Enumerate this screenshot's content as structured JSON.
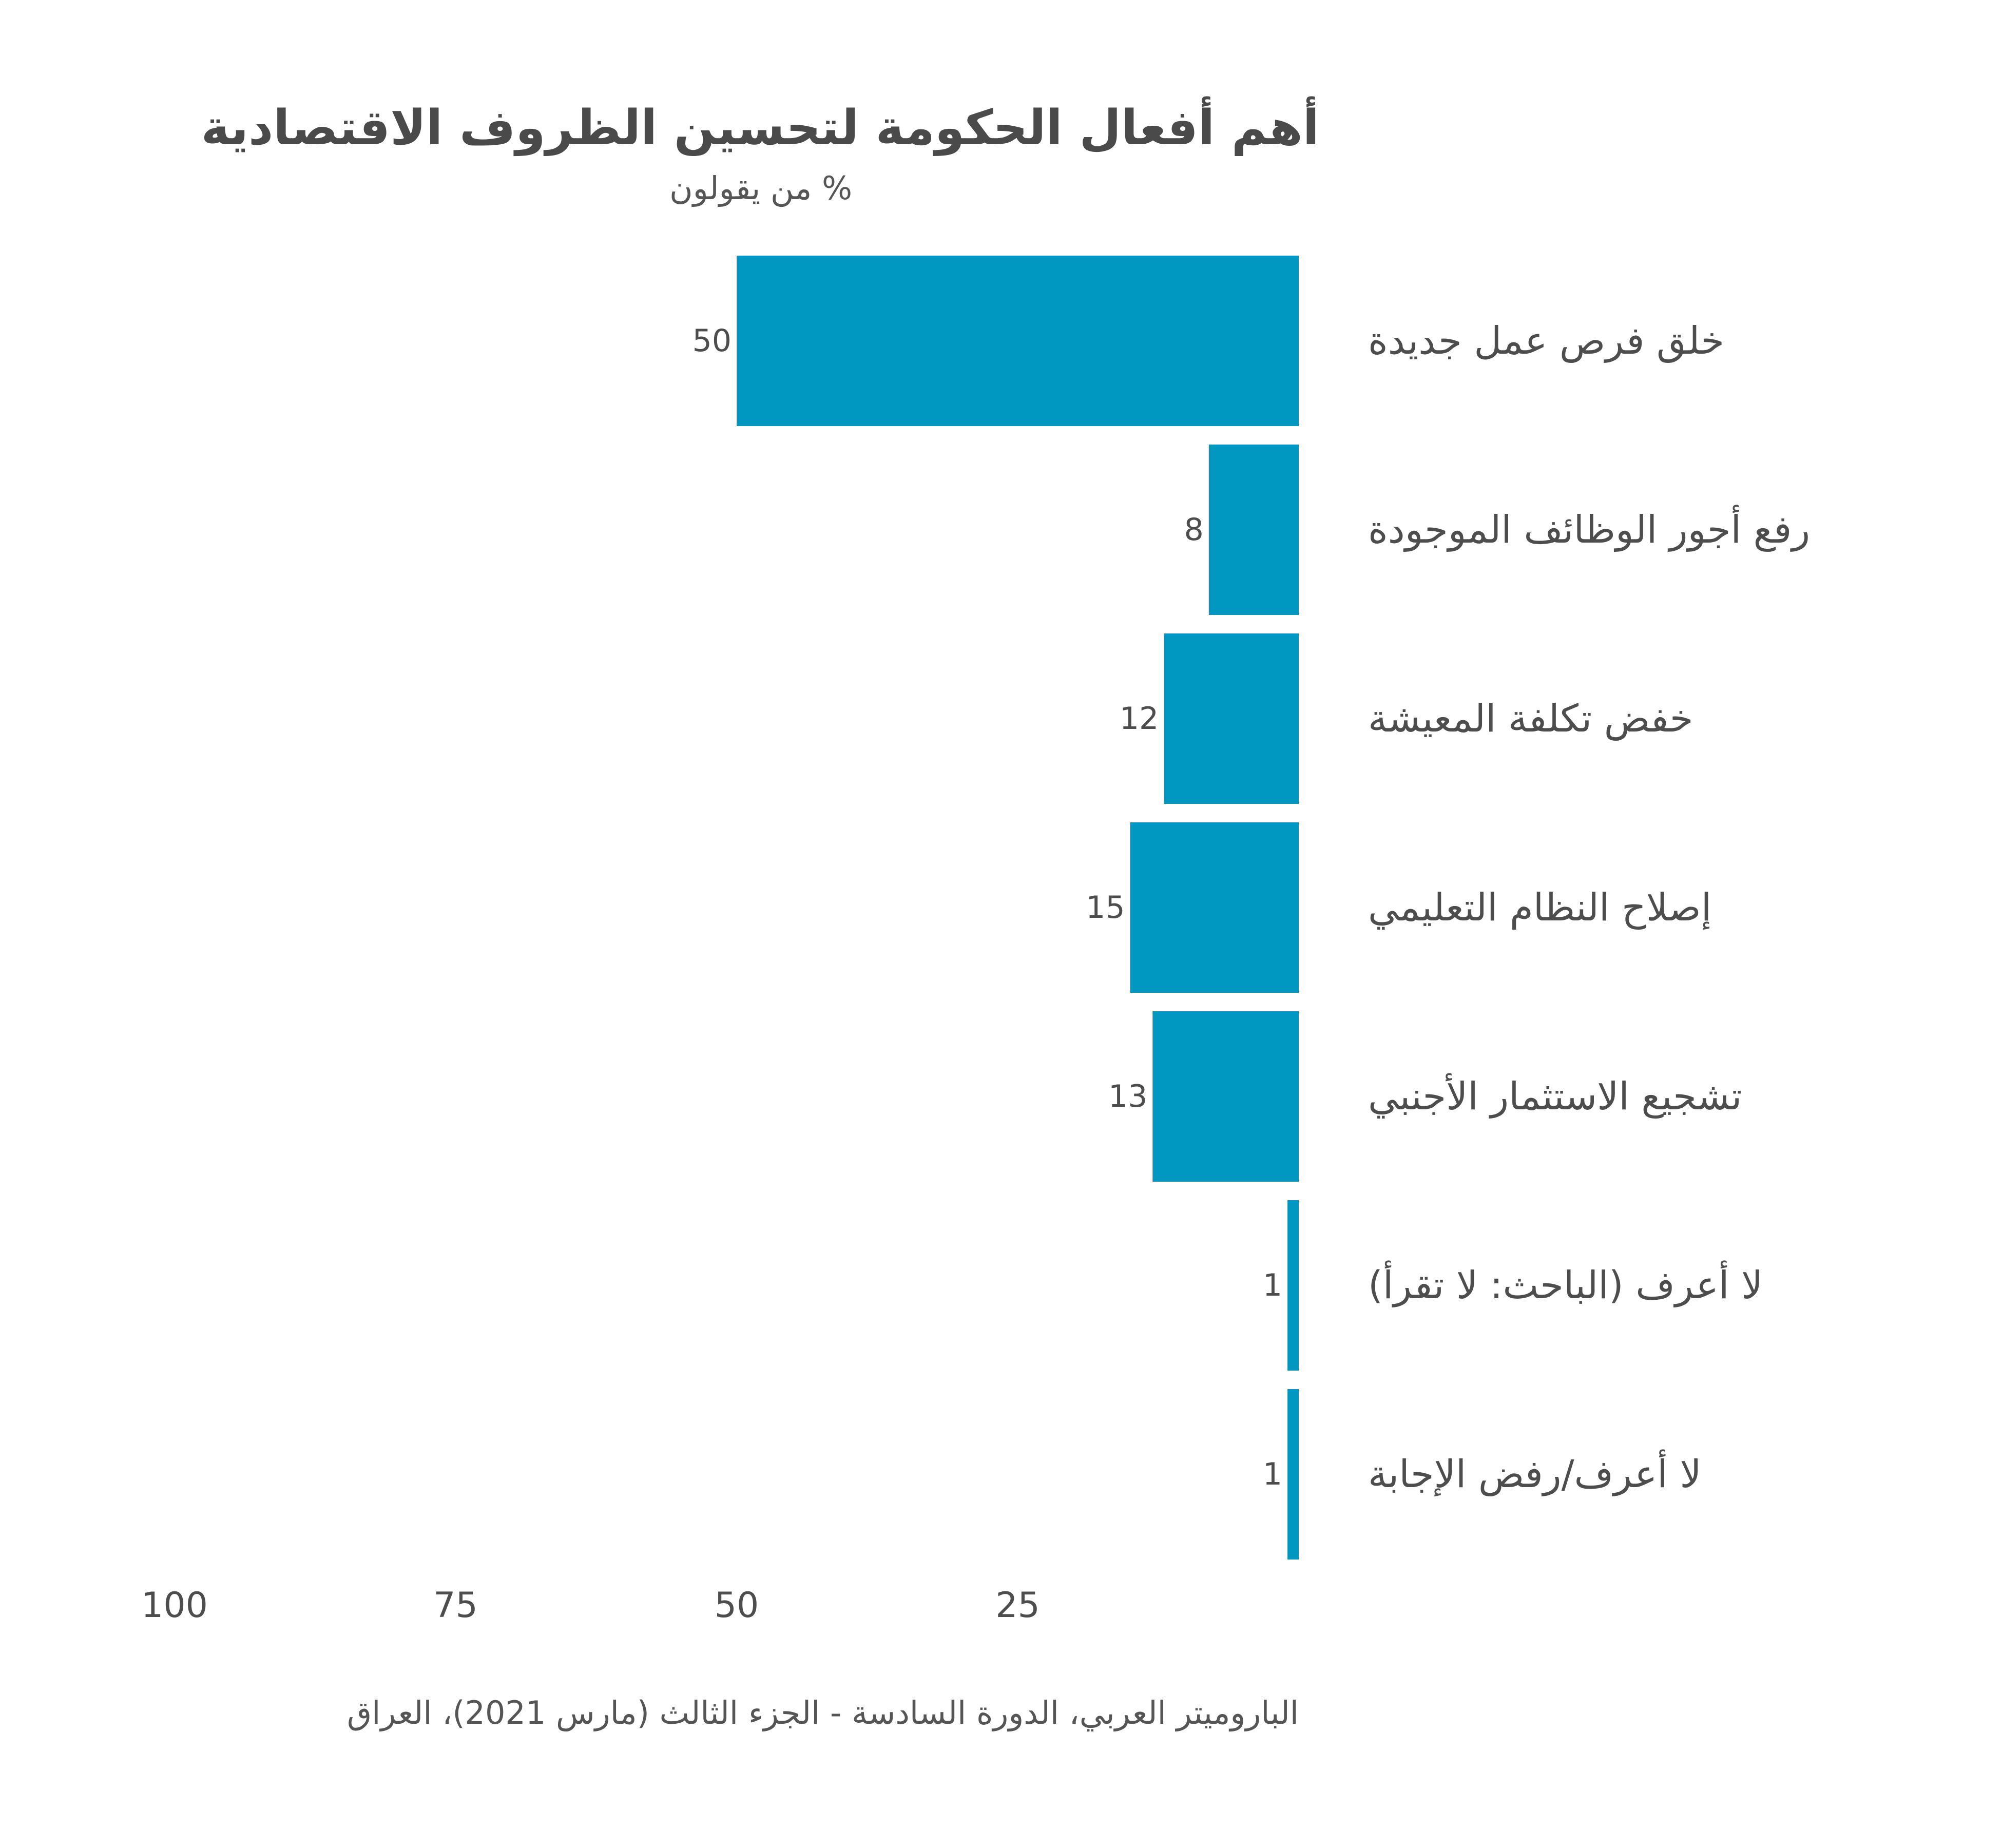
{
  "chart_data": {
    "type": "bar",
    "orientation": "horizontal",
    "direction": "rtl",
    "title": "أهم أفعال الحكومة لتحسين الظروف الاقتصادية",
    "subtitle": "% من يقولون",
    "categories": [
      "خلق فرص عمل جديدة",
      "رفع أجور الوظائف الموجودة",
      "خفض تكلفة المعيشة",
      "إصلاح النظام التعليمي",
      "تشجيع الاستثمار الأجنبي",
      "لا أعرف (الباحث: لا تقرأ)",
      "لا أعرف/رفض الإجابة"
    ],
    "values": [
      50,
      8,
      12,
      15,
      13,
      1,
      1
    ],
    "value_labels": [
      "50",
      "8",
      "12",
      "15",
      "13",
      "1",
      "1"
    ],
    "xlim": [
      0,
      100
    ],
    "x_ticks": [
      100,
      75,
      50,
      25
    ],
    "grid": false,
    "bar_color": "#0098c1"
  },
  "source": "الباروميتر العربي، الدورة السادسة - الجزء الثالث (مارس 2021)، العراق"
}
